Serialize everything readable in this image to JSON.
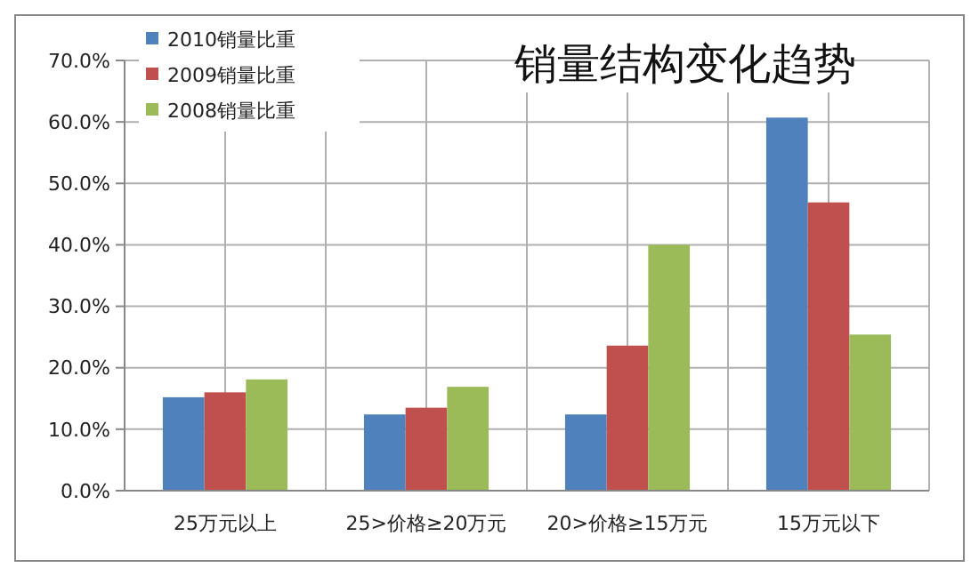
{
  "chart_data": {
    "type": "bar",
    "title": "销量结构变化趋势",
    "categories": [
      "25万元以上",
      "25>价格≥20万元",
      "20>价格≥15万元",
      "15万元以下"
    ],
    "series": [
      {
        "name": "2010销量比重",
        "color": "#4f81bd",
        "values": [
          15.2,
          12.4,
          12.4,
          60.7
        ]
      },
      {
        "name": "2009销量比重",
        "color": "#c0504d",
        "values": [
          16.0,
          13.5,
          23.6,
          46.9
        ]
      },
      {
        "name": "2008销量比重",
        "color": "#9bbb59",
        "values": [
          18.1,
          16.9,
          40.0,
          25.4
        ]
      }
    ],
    "ylim": [
      0,
      70
    ],
    "yticks": [
      {
        "value": 0,
        "label": "0.0%"
      },
      {
        "value": 10,
        "label": "10.0%"
      },
      {
        "value": 20,
        "label": "20.0%"
      },
      {
        "value": 30,
        "label": "30.0%"
      },
      {
        "value": 40,
        "label": "40.0%"
      },
      {
        "value": 50,
        "label": "50.0%"
      },
      {
        "value": 60,
        "label": "60.0%"
      },
      {
        "value": 70,
        "label": "70.0%"
      }
    ],
    "grid": true,
    "legend": "top left"
  }
}
